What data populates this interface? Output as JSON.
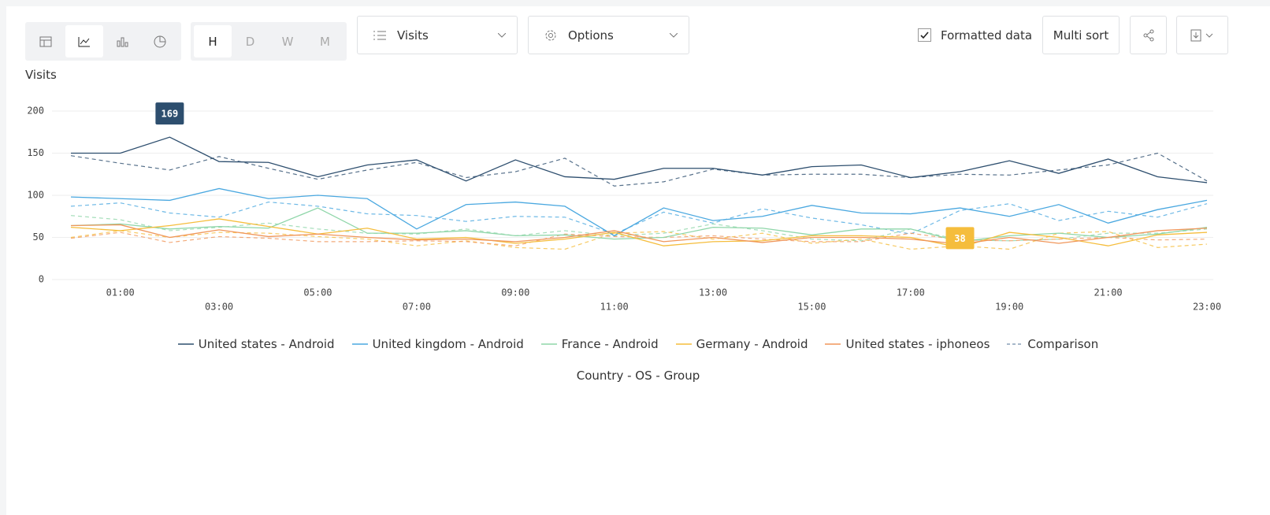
{
  "toolbar": {
    "granularity": [
      "H",
      "D",
      "W",
      "M"
    ],
    "metric": "Visits",
    "options": "Options",
    "formatted_data": "Formatted data",
    "formatted_data_checked": true,
    "multi_sort": "Multi sort"
  },
  "chart_data": {
    "type": "line",
    "y_label": "Visits",
    "legend_title": "Country - OS - Group",
    "comparison_label": "Comparison",
    "categories": [
      null,
      "01:00",
      null,
      "03:00",
      null,
      "05:00",
      null,
      "07:00",
      null,
      "09:00",
      null,
      "11:00",
      null,
      "13:00",
      null,
      "15:00",
      null,
      "17:00",
      null,
      "19:00",
      null,
      "21:00",
      null,
      "23:00"
    ],
    "ylim": [
      0,
      200
    ],
    "yticks": [
      0,
      50,
      100,
      150,
      200
    ],
    "grid": true,
    "series": [
      {
        "name": "United states - Android",
        "color": "#2d4e6e",
        "values": [
          150,
          150,
          169,
          140,
          139,
          122,
          136,
          142,
          117,
          142,
          122,
          119,
          132,
          132,
          124,
          134,
          136,
          121,
          128,
          141,
          126,
          143,
          122,
          115
        ],
        "comparison": [
          147,
          138,
          130,
          146,
          132,
          119,
          130,
          139,
          121,
          128,
          144,
          111,
          116,
          131,
          124,
          125,
          125,
          121,
          125,
          124,
          130,
          136,
          150,
          117
        ]
      },
      {
        "name": "United kingdom - Android",
        "color": "#4aa8e0",
        "values": [
          98,
          96,
          94,
          108,
          96,
          100,
          96,
          60,
          89,
          92,
          87,
          52,
          85,
          70,
          75,
          88,
          79,
          78,
          85,
          75,
          89,
          67,
          83,
          94
        ],
        "comparison": [
          87,
          91,
          79,
          74,
          92,
          87,
          78,
          76,
          69,
          75,
          74,
          54,
          80,
          67,
          84,
          73,
          65,
          54,
          82,
          90,
          70,
          81,
          74,
          90
        ]
      },
      {
        "name": "France - Android",
        "color": "#8fd6a9",
        "values": [
          64,
          66,
          60,
          63,
          61,
          85,
          55,
          55,
          58,
          52,
          53,
          48,
          50,
          62,
          61,
          53,
          60,
          60,
          45,
          52,
          55,
          50,
          54,
          62
        ],
        "comparison": [
          76,
          71,
          58,
          62,
          67,
          60,
          55,
          54,
          60,
          52,
          58,
          52,
          55,
          66,
          58,
          48,
          46,
          60,
          47,
          46,
          48,
          55,
          55,
          60
        ]
      },
      {
        "name": "Germany - Android",
        "color": "#f5bd3c",
        "values": [
          62,
          58,
          64,
          72,
          63,
          54,
          61,
          48,
          50,
          43,
          48,
          56,
          40,
          45,
          46,
          52,
          52,
          50,
          38,
          56,
          50,
          40,
          53,
          56
        ],
        "comparison": [
          50,
          58,
          50,
          56,
          55,
          51,
          48,
          40,
          46,
          38,
          36,
          55,
          57,
          48,
          55,
          43,
          48,
          36,
          40,
          36,
          55,
          57,
          38,
          42
        ]
      },
      {
        "name": "United states - iphoneos",
        "color": "#f0965a",
        "values": [
          64,
          65,
          50,
          59,
          51,
          54,
          50,
          47,
          48,
          45,
          50,
          58,
          45,
          50,
          44,
          50,
          50,
          48,
          42,
          50,
          43,
          50,
          58,
          61
        ],
        "comparison": [
          49,
          56,
          44,
          51,
          49,
          45,
          45,
          46,
          45,
          40,
          54,
          51,
          50,
          52,
          48,
          45,
          45,
          55,
          47,
          46,
          48,
          50,
          47,
          48
        ]
      }
    ]
  }
}
